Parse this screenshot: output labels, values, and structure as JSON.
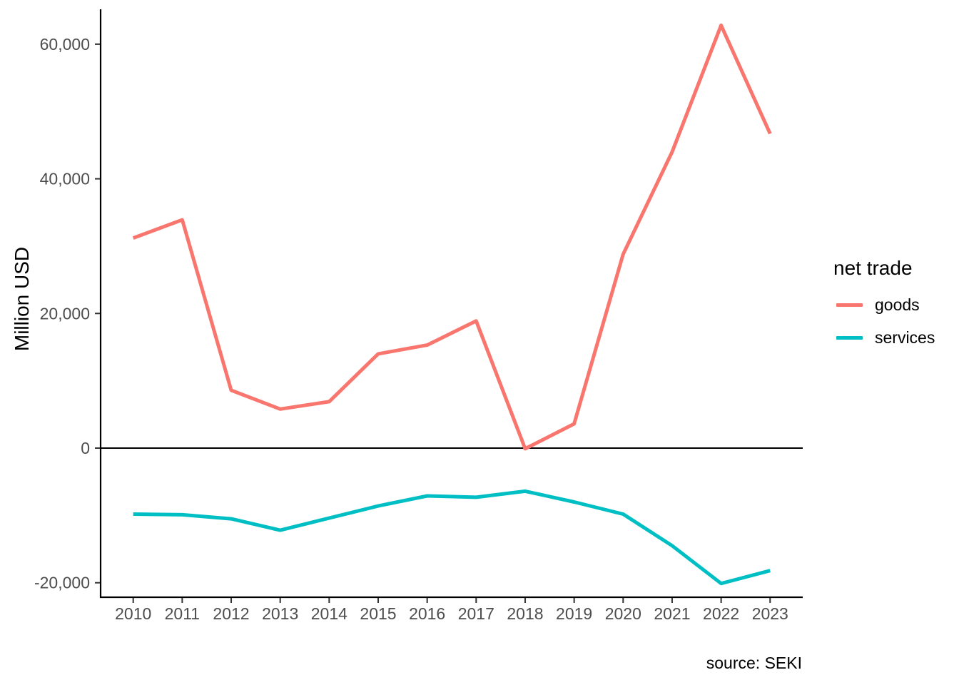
{
  "figure": {
    "y_axis_title": "Million USD",
    "caption": "source: SEKI",
    "legend_title": "net trade",
    "legend_items": [
      {
        "label": "goods",
        "color": "#F8766D"
      },
      {
        "label": "services",
        "color": "#00BFC4"
      }
    ]
  },
  "chart_data": {
    "type": "line",
    "title": "",
    "xlabel": "",
    "ylabel": "Million USD",
    "caption": "source: SEKI",
    "legend_title": "net trade",
    "legend_position": "right",
    "grid": false,
    "zero_line": 0,
    "x": [
      2010,
      2011,
      2012,
      2013,
      2014,
      2015,
      2016,
      2017,
      2018,
      2019,
      2020,
      2021,
      2022,
      2023
    ],
    "x_tick_labels": [
      "2010",
      "2011",
      "2012",
      "2013",
      "2014",
      "2015",
      "2016",
      "2017",
      "2018",
      "2019",
      "2020",
      "2021",
      "2022",
      "2023"
    ],
    "y_ticks": [
      {
        "value": 60000,
        "label": "60,000"
      },
      {
        "value": 40000,
        "label": "40,000"
      },
      {
        "value": 20000,
        "label": "20,000"
      },
      {
        "value": 0,
        "label": "0"
      },
      {
        "value": -20000,
        "label": "-20,000"
      }
    ],
    "ylim": [
      -22150,
      65180
    ],
    "series": [
      {
        "name": "goods",
        "color": "#F8766D",
        "values": [
          31200,
          33900,
          8600,
          5800,
          6900,
          14000,
          15300,
          18900,
          -100,
          3600,
          28800,
          44000,
          62800,
          46700
        ]
      },
      {
        "name": "services",
        "color": "#00BFC4",
        "values": [
          -9800,
          -9900,
          -10500,
          -12200,
          -10400,
          -8600,
          -7100,
          -7300,
          -6400,
          -8000,
          -9800,
          -14500,
          -20100,
          -18200
        ]
      }
    ]
  }
}
